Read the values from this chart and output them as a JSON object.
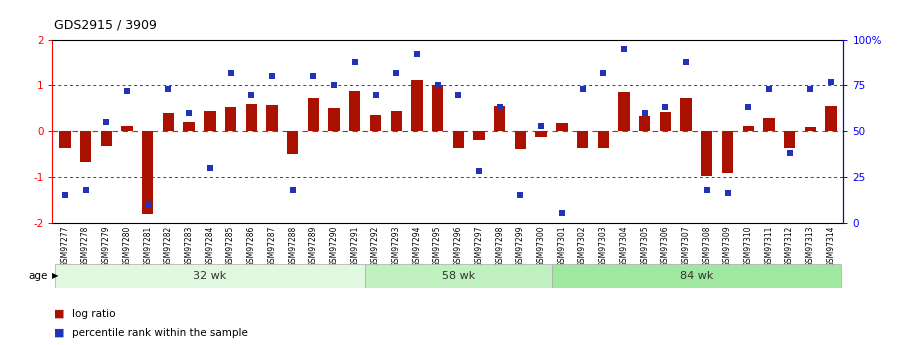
{
  "title": "GDS2915 / 3909",
  "samples": [
    "GSM97277",
    "GSM97278",
    "GSM97279",
    "GSM97280",
    "GSM97281",
    "GSM97282",
    "GSM97283",
    "GSM97284",
    "GSM97285",
    "GSM97286",
    "GSM97287",
    "GSM97288",
    "GSM97289",
    "GSM97290",
    "GSM97291",
    "GSM97292",
    "GSM97293",
    "GSM97294",
    "GSM97295",
    "GSM97296",
    "GSM97297",
    "GSM97298",
    "GSM97299",
    "GSM97300",
    "GSM97301",
    "GSM97302",
    "GSM97303",
    "GSM97304",
    "GSM97305",
    "GSM97306",
    "GSM97307",
    "GSM97308",
    "GSM97309",
    "GSM97310",
    "GSM97311",
    "GSM97312",
    "GSM97313",
    "GSM97314"
  ],
  "log_ratio": [
    -0.38,
    -0.68,
    -0.32,
    0.12,
    -1.82,
    0.4,
    0.2,
    0.45,
    0.52,
    0.6,
    0.58,
    -0.5,
    0.72,
    0.5,
    0.88,
    0.35,
    0.45,
    1.12,
    1.0,
    -0.38,
    -0.2,
    0.55,
    -0.4,
    -0.12,
    0.18,
    -0.38,
    -0.38,
    0.85,
    0.32,
    0.42,
    0.72,
    -0.98,
    -0.92,
    0.12,
    0.28,
    -0.38,
    0.08,
    0.55
  ],
  "percentile": [
    15,
    18,
    55,
    72,
    10,
    73,
    60,
    30,
    82,
    70,
    80,
    18,
    80,
    75,
    88,
    70,
    82,
    92,
    75,
    70,
    28,
    63,
    15,
    53,
    5,
    73,
    82,
    95,
    60,
    63,
    88,
    18,
    16,
    63,
    73,
    38,
    73,
    77
  ],
  "group_labels": [
    "32 wk",
    "58 wk",
    "84 wk"
  ],
  "group_starts": [
    0,
    15,
    24
  ],
  "group_ends": [
    15,
    24,
    38
  ],
  "group_colors": [
    "#e0f8e0",
    "#c0f0c0",
    "#a0e8a0"
  ],
  "bar_color": "#aa1100",
  "dot_color": "#2233bb",
  "ylim_left": [
    -2.0,
    2.0
  ],
  "bg_color": "#ffffff",
  "zero_line_color": "#cc2222",
  "dotted_line_color": "#444444",
  "left_yticks": [
    -2,
    -1,
    0,
    1,
    2
  ],
  "right_yticks": [
    0,
    25,
    50,
    75,
    100
  ],
  "right_yticklabels": [
    "0",
    "25",
    "50",
    "75",
    "100%"
  ]
}
